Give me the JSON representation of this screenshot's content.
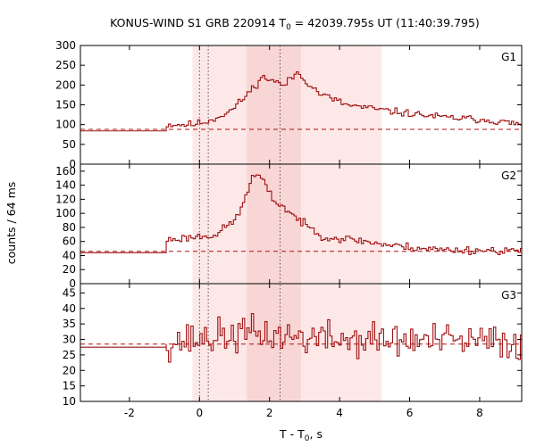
{
  "title": {
    "prefix": "KONUS-WIND S1 GRB 220914 T",
    "sub": "0",
    "suffix": " = 42039.795s UT (11:40:39.795)"
  },
  "xlabel": {
    "prefix": "T - T",
    "sub": "0",
    "suffix": ", s"
  },
  "ylabel": "counts / 64 ms",
  "colors": {
    "curve": "#a01010",
    "band_outer": "#fde8e8",
    "band_inner": "#f9d6d6",
    "background_line": "#b01010"
  },
  "chart_data": {
    "type": "line",
    "xlim": [
      -3.4,
      9.2
    ],
    "x_ticks": [
      -2,
      0,
      2,
      4,
      6,
      8
    ],
    "x_tick_labels": [
      "-2",
      "0",
      "2",
      "4",
      "6",
      "8"
    ],
    "bin_width_s": 0.064,
    "shaded_intervals": [
      {
        "name": "outer",
        "x": [
          -0.2,
          5.2
        ]
      },
      {
        "name": "inner",
        "x": [
          1.35,
          2.9
        ]
      }
    ],
    "vertical_lines": [
      0.0,
      0.25,
      2.3
    ],
    "panels": [
      {
        "label": "G1",
        "ylim": [
          0,
          300
        ],
        "y_ticks": [
          0,
          50,
          100,
          150,
          200,
          250,
          300
        ],
        "background": 88,
        "pre_level": [
          [
            -3.4,
            84
          ],
          [
            -0.95,
            91
          ]
        ],
        "profile": [
          [
            -0.2,
            100
          ],
          [
            0.3,
            110
          ],
          [
            0.9,
            135
          ],
          [
            1.3,
            170
          ],
          [
            1.8,
            220
          ],
          [
            2.1,
            212
          ],
          [
            2.4,
            198
          ],
          [
            2.8,
            232
          ],
          [
            3.4,
            180
          ],
          [
            4.2,
            150
          ],
          [
            5.5,
            133
          ],
          [
            7,
            118
          ],
          [
            8.2,
            112
          ],
          [
            9.2,
            100
          ]
        ],
        "noise": 8,
        "seed": 11
      },
      {
        "label": "G2",
        "ylim": [
          0,
          170
        ],
        "y_ticks": [
          0,
          20,
          40,
          60,
          80,
          100,
          120,
          140,
          160
        ],
        "background": 46,
        "pre_level": [
          [
            -3.4,
            44
          ],
          [
            -0.95,
            54
          ]
        ],
        "profile": [
          [
            -0.95,
            62
          ],
          [
            0.5,
            70
          ],
          [
            1.1,
            95
          ],
          [
            1.5,
            150
          ],
          [
            1.7,
            155
          ],
          [
            2.1,
            120
          ],
          [
            2.5,
            105
          ],
          [
            3.0,
            84
          ],
          [
            3.6,
            66
          ],
          [
            4.5,
            62
          ],
          [
            5.5,
            54
          ],
          [
            7.0,
            48
          ],
          [
            9.2,
            47
          ]
        ],
        "noise": 5,
        "seed": 23
      },
      {
        "label": "G3",
        "ylim": [
          10,
          48
        ],
        "y_ticks": [
          10,
          15,
          20,
          25,
          30,
          35,
          40,
          45
        ],
        "background": 28.5,
        "pre_level": [
          [
            -3.4,
            27.5
          ],
          [
            -0.95,
            28.5
          ]
        ],
        "profile": [
          [
            -0.95,
            29
          ],
          [
            1.5,
            32
          ],
          [
            2.5,
            31
          ],
          [
            4,
            30
          ],
          [
            9.2,
            29
          ]
        ],
        "noise": 5,
        "seed": 37
      }
    ]
  }
}
